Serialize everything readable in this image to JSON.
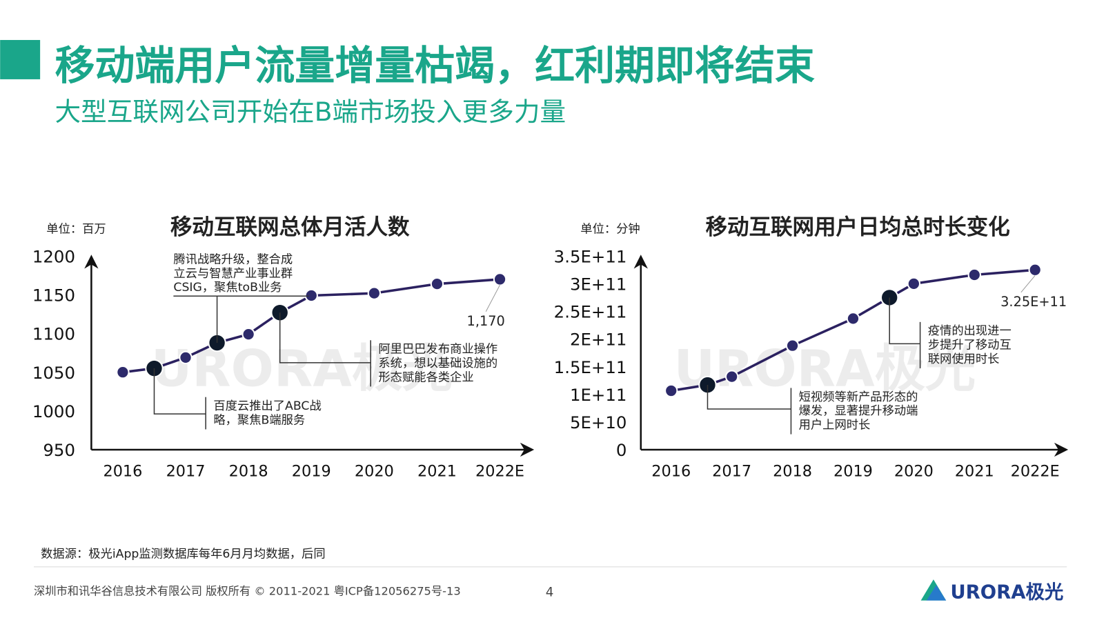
{
  "header": {
    "title": "移动端用户流量增量枯竭，红利期即将结束",
    "subtitle": "大型互联网公司开始在B端市场投入更多力量"
  },
  "chart_data": [
    {
      "type": "line",
      "title": "移动互联网总体月活人数",
      "unit": "单位：百万",
      "x": [
        2016,
        2016.5,
        2017,
        2017.5,
        2018,
        2018.5,
        2019,
        2020,
        2021,
        2022
      ],
      "xlim": [
        2015.5,
        2022.5
      ],
      "xticks": [
        2016,
        2017,
        2018,
        2019,
        2020,
        2021,
        {
          "value": 2022,
          "label": "2022E"
        }
      ],
      "values": [
        1050,
        1055,
        1069,
        1088,
        1099,
        1127,
        1149,
        1152,
        1164,
        1170
      ],
      "value_labels": [
        null,
        null,
        null,
        null,
        null,
        null,
        null,
        null,
        null,
        "1,170"
      ],
      "ylim": [
        950,
        1200
      ],
      "yticks": [
        950,
        1000,
        1050,
        1100,
        1150,
        1200
      ],
      "color": "#2b2160",
      "marker_color": "#2d2a6b",
      "highlight_color": "#0e1a2b",
      "annotations": [
        {
          "x": 2016.5,
          "lines": [
            "百度云推出了ABC战",
            "略，聚焦B端服务"
          ]
        },
        {
          "x": 2017.5,
          "lines": [
            "腾讯战略升级，整合成",
            "立云与智慧产业事业群",
            "CSIG，聚焦toB业务"
          ]
        },
        {
          "x": 2018.5,
          "lines": [
            "阿里巴巴发布商业操作",
            "系统，想以基础设施的",
            "形态赋能各类企业"
          ]
        }
      ]
    },
    {
      "type": "line",
      "title": "移动互联网用户日均总时长变化",
      "unit": "单位：分钟",
      "x": [
        2016,
        2016.6,
        2017,
        2018,
        2019,
        2019.6,
        2020,
        2021,
        2022
      ],
      "xlim": [
        2015.5,
        2022.5
      ],
      "xticks": [
        2016,
        2017,
        2018,
        2019,
        2020,
        2021,
        {
          "value": 2022,
          "label": "2022E"
        }
      ],
      "values": [
        106500000000.0,
        117000000000.0,
        132000000000.0,
        188000000000.0,
        237000000000.0,
        275000000000.0,
        300000000000.0,
        316000000000.0,
        325000000000.0
      ],
      "value_labels": [
        null,
        null,
        null,
        null,
        null,
        null,
        null,
        null,
        "3.25E+11"
      ],
      "ylim": [
        0,
        350000000000
      ],
      "yticks": [
        0,
        {
          "value": 50000000000,
          "label": "5E+10"
        },
        {
          "value": 100000000000,
          "label": "1E+11"
        },
        {
          "value": 150000000000,
          "label": "1.5E+11"
        },
        {
          "value": 200000000000,
          "label": "2E+11"
        },
        {
          "value": 250000000000,
          "label": "2.5E+11"
        },
        {
          "value": 300000000000,
          "label": "3E+11"
        },
        {
          "value": 350000000000,
          "label": "3.5E+11"
        }
      ],
      "color": "#2b2160",
      "marker_color": "#2d2a6b",
      "highlight_color": "#0e1a2b",
      "annotations": [
        {
          "x": 2016.6,
          "lines": [
            "短视频等新产品形态的",
            "爆发，显著提升移动端",
            "用户上网时长"
          ]
        },
        {
          "x": 2019.6,
          "lines": [
            "疫情的出现进一",
            "步提升了移动互",
            "联网使用时长"
          ]
        }
      ]
    }
  ],
  "watermark": "URORA极光",
  "footer": {
    "source": "数据源：极光iApp监测数据库每年6月月均数据，后同",
    "copyright": "深圳市和讯华谷信息技术有限公司 版权所有 © 2011-2021 粤ICP备12056275号-13",
    "page": 4,
    "logo": "URORA极光"
  }
}
